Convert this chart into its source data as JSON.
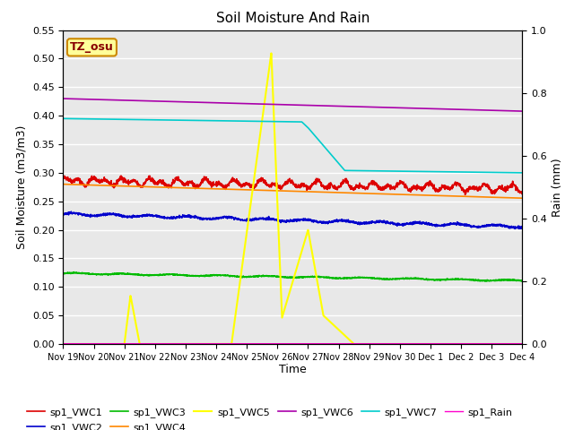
{
  "title": "Soil Moisture And Rain",
  "xlabel": "Time",
  "ylabel_left": "Soil Moisture (m3/m3)",
  "ylabel_right": "Rain (mm)",
  "ylim_left": [
    0.0,
    0.55
  ],
  "ylim_right": [
    0.0,
    1.0
  ],
  "background_color": "#e8e8e8",
  "annotation_text": "TZ_osu",
  "annotation_bbox_facecolor": "#ffff99",
  "annotation_bbox_edgecolor": "#cc8800",
  "x_tick_labels": [
    "Nov 19",
    "Nov 20",
    "Nov 21",
    "Nov 22",
    "Nov 23",
    "Nov 24",
    "Nov 25",
    "Nov 26",
    "Nov 27",
    "Nov 28",
    "Nov 29",
    "Nov 30",
    "Dec 1",
    "Dec 2",
    "Dec 3",
    "Dec 4"
  ],
  "series": {
    "sp1_VWC1": {
      "color": "#dd0000",
      "lw": 1.2
    },
    "sp1_VWC2": {
      "color": "#0000cc",
      "lw": 1.2
    },
    "sp1_VWC3": {
      "color": "#00bb00",
      "lw": 1.2
    },
    "sp1_VWC4": {
      "color": "#ff8800",
      "lw": 1.2
    },
    "sp1_VWC5": {
      "color": "#ffff00",
      "lw": 1.5
    },
    "sp1_VWC6": {
      "color": "#aa00aa",
      "lw": 1.2
    },
    "sp1_VWC7": {
      "color": "#00cccc",
      "lw": 1.2
    },
    "sp1_Rain": {
      "color": "#ff00cc",
      "lw": 1.0
    }
  },
  "yticks_left": [
    0.0,
    0.05,
    0.1,
    0.15,
    0.2,
    0.25,
    0.3,
    0.35,
    0.4,
    0.45,
    0.5,
    0.55
  ],
  "yticks_right": [
    0.0,
    0.2,
    0.4,
    0.6,
    0.8,
    1.0
  ],
  "figsize": [
    6.4,
    4.8
  ],
  "dpi": 100
}
